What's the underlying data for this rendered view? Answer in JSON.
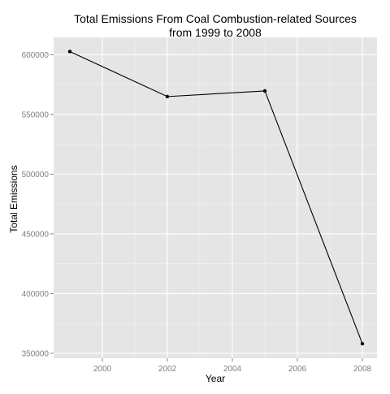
{
  "chart_data": {
    "type": "line",
    "title": [
      "Total Emissions From Coal Combustion-related Sources",
      "from 1999 to 2008"
    ],
    "xlabel": "Year",
    "ylabel": "Total Emissions",
    "x": [
      1999,
      2002,
      2005,
      2008
    ],
    "series": [
      {
        "values": [
          602624,
          564941,
          569655,
          358083
        ]
      }
    ],
    "xlim": [
      1998.5,
      2008.45
    ],
    "ylim": [
      345900,
      614500
    ],
    "xticks": [
      2000,
      2002,
      2004,
      2006,
      2008
    ],
    "yticks": [
      350000,
      400000,
      450000,
      500000,
      550000,
      600000
    ],
    "grid": true,
    "legend": "none",
    "colors": {
      "panel": "#e5e5e5",
      "grid_major": "#ffffff",
      "grid_minor": "#f2f2f2",
      "line": "#000000",
      "tick_text": "#7f7f7f"
    }
  }
}
